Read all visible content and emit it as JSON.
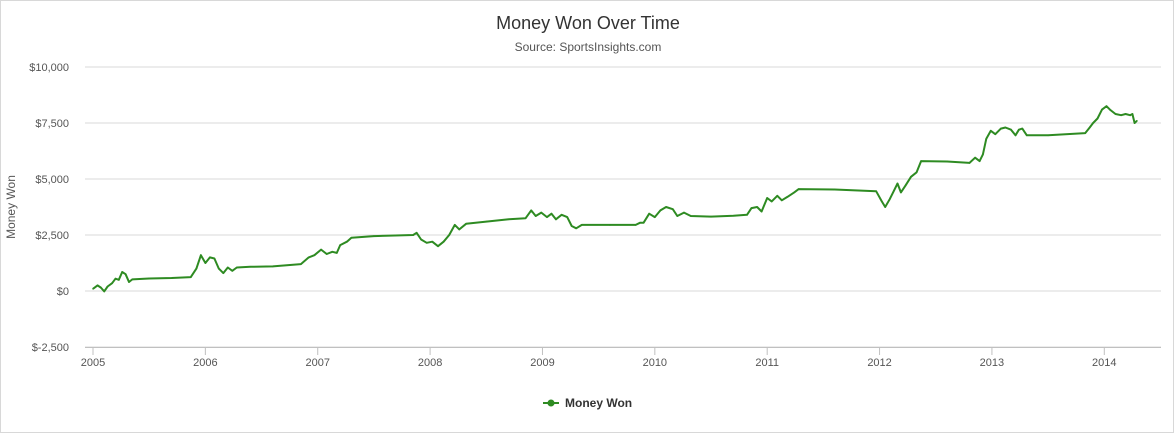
{
  "chart_data": {
    "type": "line",
    "title": "Money Won Over Time",
    "subtitle": "Source: SportsInsights.com",
    "xlabel": "",
    "ylabel": "Money Won",
    "xlim": [
      2005.0,
      2014.3
    ],
    "ylim": [
      -2500,
      10000
    ],
    "x_ticks": [
      {
        "value": 2005,
        "label": "2005"
      },
      {
        "value": 2006,
        "label": "2006"
      },
      {
        "value": 2007,
        "label": "2007"
      },
      {
        "value": 2008,
        "label": "2008"
      },
      {
        "value": 2009,
        "label": "2009"
      },
      {
        "value": 2010,
        "label": "2010"
      },
      {
        "value": 2011,
        "label": "2011"
      },
      {
        "value": 2012,
        "label": "2012"
      },
      {
        "value": 2013,
        "label": "2013"
      },
      {
        "value": 2014,
        "label": "2014"
      }
    ],
    "y_ticks": [
      {
        "value": -2500,
        "label": "$-2,500"
      },
      {
        "value": 0,
        "label": "$0"
      },
      {
        "value": 2500,
        "label": "$2,500"
      },
      {
        "value": 5000,
        "label": "$5,000"
      },
      {
        "value": 7500,
        "label": "$7,500"
      },
      {
        "value": 10000,
        "label": "$10,000"
      }
    ],
    "grid": true,
    "legend_position": "bottom-center",
    "series": [
      {
        "name": "Money Won",
        "color": "#2e8b22",
        "points": [
          [
            2005.0,
            100
          ],
          [
            2005.04,
            250
          ],
          [
            2005.07,
            150
          ],
          [
            2005.1,
            -20
          ],
          [
            2005.13,
            200
          ],
          [
            2005.17,
            350
          ],
          [
            2005.2,
            550
          ],
          [
            2005.23,
            500
          ],
          [
            2005.26,
            850
          ],
          [
            2005.29,
            750
          ],
          [
            2005.32,
            400
          ],
          [
            2005.35,
            520
          ],
          [
            2005.5,
            560
          ],
          [
            2005.7,
            580
          ],
          [
            2005.87,
            620
          ],
          [
            2005.92,
            1000
          ],
          [
            2005.96,
            1600
          ],
          [
            2006.0,
            1250
          ],
          [
            2006.04,
            1500
          ],
          [
            2006.08,
            1450
          ],
          [
            2006.12,
            1000
          ],
          [
            2006.16,
            800
          ],
          [
            2006.2,
            1050
          ],
          [
            2006.24,
            900
          ],
          [
            2006.28,
            1050
          ],
          [
            2006.4,
            1080
          ],
          [
            2006.6,
            1100
          ],
          [
            2006.85,
            1200
          ],
          [
            2006.92,
            1500
          ],
          [
            2006.97,
            1600
          ],
          [
            2007.03,
            1850
          ],
          [
            2007.08,
            1650
          ],
          [
            2007.13,
            1750
          ],
          [
            2007.17,
            1700
          ],
          [
            2007.2,
            2050
          ],
          [
            2007.26,
            2200
          ],
          [
            2007.3,
            2380
          ],
          [
            2007.5,
            2450
          ],
          [
            2007.85,
            2500
          ],
          [
            2007.88,
            2600
          ],
          [
            2007.92,
            2300
          ],
          [
            2007.97,
            2150
          ],
          [
            2008.02,
            2200
          ],
          [
            2008.07,
            2000
          ],
          [
            2008.12,
            2200
          ],
          [
            2008.17,
            2500
          ],
          [
            2008.22,
            2950
          ],
          [
            2008.26,
            2750
          ],
          [
            2008.32,
            3000
          ],
          [
            2008.5,
            3100
          ],
          [
            2008.7,
            3200
          ],
          [
            2008.85,
            3250
          ],
          [
            2008.9,
            3600
          ],
          [
            2008.94,
            3350
          ],
          [
            2008.99,
            3500
          ],
          [
            2009.04,
            3300
          ],
          [
            2009.08,
            3450
          ],
          [
            2009.12,
            3200
          ],
          [
            2009.17,
            3400
          ],
          [
            2009.22,
            3300
          ],
          [
            2009.26,
            2900
          ],
          [
            2009.3,
            2800
          ],
          [
            2009.35,
            2950
          ],
          [
            2009.6,
            2950
          ],
          [
            2009.83,
            2950
          ],
          [
            2009.87,
            3050
          ],
          [
            2009.9,
            3050
          ],
          [
            2009.95,
            3450
          ],
          [
            2010.0,
            3300
          ],
          [
            2010.05,
            3600
          ],
          [
            2010.1,
            3750
          ],
          [
            2010.16,
            3650
          ],
          [
            2010.2,
            3350
          ],
          [
            2010.26,
            3500
          ],
          [
            2010.32,
            3350
          ],
          [
            2010.5,
            3320
          ],
          [
            2010.7,
            3360
          ],
          [
            2010.82,
            3400
          ],
          [
            2010.86,
            3700
          ],
          [
            2010.91,
            3750
          ],
          [
            2010.95,
            3550
          ],
          [
            2011.0,
            4150
          ],
          [
            2011.04,
            4000
          ],
          [
            2011.09,
            4250
          ],
          [
            2011.13,
            4050
          ],
          [
            2011.18,
            4200
          ],
          [
            2011.24,
            4400
          ],
          [
            2011.28,
            4550
          ],
          [
            2011.6,
            4530
          ],
          [
            2011.97,
            4450
          ],
          [
            2012.02,
            4000
          ],
          [
            2012.05,
            3750
          ],
          [
            2012.09,
            4100
          ],
          [
            2012.13,
            4500
          ],
          [
            2012.16,
            4800
          ],
          [
            2012.19,
            4400
          ],
          [
            2012.23,
            4700
          ],
          [
            2012.28,
            5100
          ],
          [
            2012.33,
            5300
          ],
          [
            2012.37,
            5800
          ],
          [
            2012.6,
            5780
          ],
          [
            2012.8,
            5720
          ],
          [
            2012.85,
            5950
          ],
          [
            2012.89,
            5800
          ],
          [
            2012.92,
            6100
          ],
          [
            2012.95,
            6800
          ],
          [
            2012.99,
            7150
          ],
          [
            2013.03,
            7000
          ],
          [
            2013.08,
            7250
          ],
          [
            2013.12,
            7300
          ],
          [
            2013.17,
            7200
          ],
          [
            2013.21,
            6950
          ],
          [
            2013.24,
            7200
          ],
          [
            2013.27,
            7250
          ],
          [
            2013.31,
            6950
          ],
          [
            2013.5,
            6950
          ],
          [
            2013.83,
            7050
          ],
          [
            2013.87,
            7300
          ],
          [
            2013.9,
            7500
          ],
          [
            2013.94,
            7700
          ],
          [
            2013.98,
            8100
          ],
          [
            2014.02,
            8250
          ],
          [
            2014.05,
            8100
          ],
          [
            2014.1,
            7900
          ],
          [
            2014.15,
            7850
          ],
          [
            2014.19,
            7900
          ],
          [
            2014.23,
            7850
          ],
          [
            2014.25,
            7900
          ],
          [
            2014.27,
            7500
          ],
          [
            2014.29,
            7600
          ]
        ]
      }
    ]
  }
}
